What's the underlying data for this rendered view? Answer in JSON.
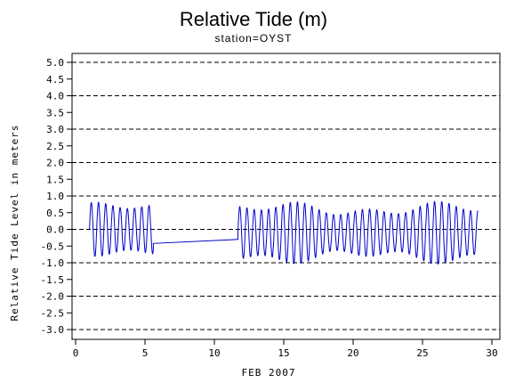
{
  "chart_data": {
    "type": "line",
    "title": "Relative Tide (m)",
    "subtitle": "station=OYST",
    "xlabel": "FEB 2007",
    "ylabel": "Relative Tide Level in meters",
    "xlim": [
      0,
      30
    ],
    "ylim": [
      -3.0,
      5.0
    ],
    "x_ticks": [
      "0",
      "5",
      "10",
      "15",
      "20",
      "25",
      "30"
    ],
    "y_ticks": [
      "5.0",
      "4.5",
      "4.0",
      "3.5",
      "3.0",
      "2.5",
      "2.0",
      "1.5",
      "1.0",
      "0.5",
      "0.0",
      "-0.5",
      "-1.0",
      "-1.5",
      "-2.0",
      "-2.5",
      "-3.0"
    ],
    "gridlines_y": [
      5.0,
      4.0,
      3.0,
      2.0,
      1.0,
      0.0,
      -1.0,
      -2.0,
      -3.0
    ],
    "grid": "horizontal dashed at whole meters",
    "series": [
      {
        "color": "#0000cc",
        "segments": [
          {
            "x_start": 1.0,
            "x_end": 5.6,
            "mean": 0.0,
            "amplitude": 0.85,
            "period_days": 0.52
          },
          {
            "x_start": 5.6,
            "x_end": 11.7,
            "y_start": -0.42,
            "y_end": -0.3
          },
          {
            "x_start": 11.7,
            "x_end": 29.0,
            "mean": -0.1,
            "amplitude": 0.95,
            "period_days": 0.52
          }
        ]
      }
    ]
  }
}
